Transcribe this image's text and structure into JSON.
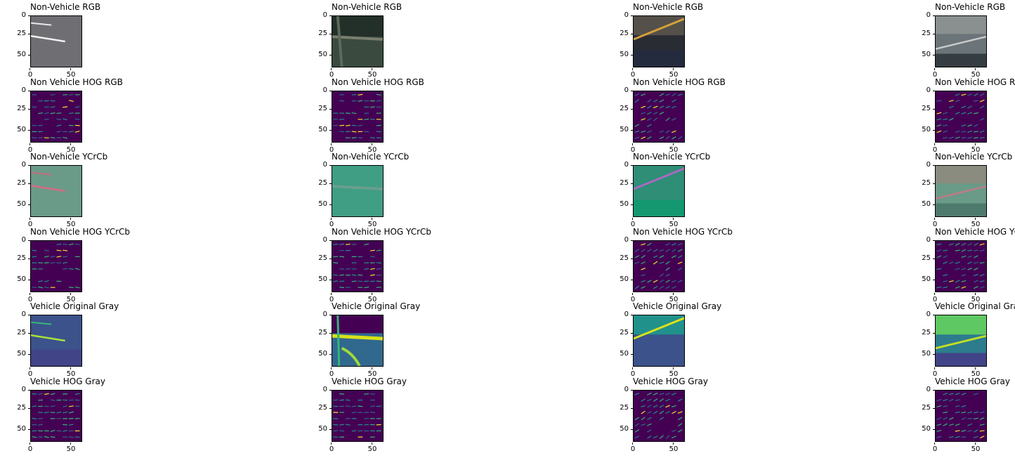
{
  "figure": {
    "columns": 4,
    "rows": [
      {
        "titles": [
          "Non-Vehicle RGB",
          "Non-Vehicle RGB",
          "Non-Vehicle RGB",
          "Non-Vehicle RGB"
        ],
        "kind": "rgb"
      },
      {
        "titles": [
          "Non Vehicle HOG RGB",
          "Non Vehicle HOG RGB",
          "Non Vehicle HOG RGB",
          "Non Vehicle HOG RGB"
        ],
        "kind": "hog"
      },
      {
        "titles": [
          "Non-Vehicle YCrCb",
          "Non-Vehicle YCrCb",
          "Non-Vehicle YCrCb",
          "Non-Vehicle YCrCb"
        ],
        "kind": "ycrcb"
      },
      {
        "titles": [
          "Non Vehicle HOG YCrCb",
          "Non Vehicle HOG YCrCb",
          "Non Vehicle HOG YCrCb",
          "Non Vehicle HOG YCrCb"
        ],
        "kind": "hog"
      },
      {
        "titles": [
          "Vehicle Original Gray",
          "Vehicle Original Gray",
          "Vehicle Original Gray",
          "Vehicle Original Gray"
        ],
        "kind": "gray"
      },
      {
        "titles": [
          "Vehicle HOG Gray",
          "Vehicle HOG Gray",
          "Vehicle HOG Gray",
          "Vehicle HOG Gray"
        ],
        "kind": "hog"
      }
    ],
    "yticks": [
      "0",
      "25",
      "50"
    ],
    "xticks": [
      "0",
      "50"
    ],
    "colors": {
      "viridis_dark": "#440154",
      "viridis_teal": "#21918c",
      "viridis_yellow": "#fde725"
    }
  }
}
